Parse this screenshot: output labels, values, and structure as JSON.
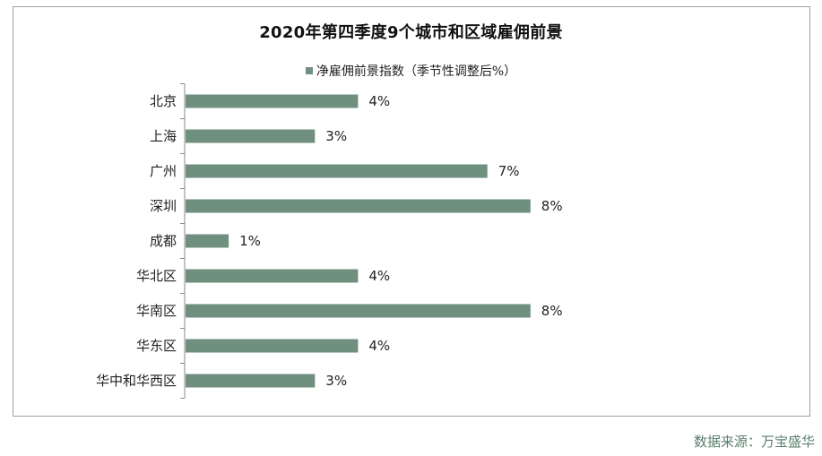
{
  "source_note": "数据来源：万宝盛华",
  "colors": {
    "bar": "#6f8f7f",
    "axis": "#8a8a8a",
    "text": "#222222",
    "source": "#5a7f6c"
  },
  "chart_data": {
    "type": "bar",
    "orientation": "horizontal",
    "title": "2020年第四季度9个城市和区域雇佣前景",
    "legend": "净雇佣前景指数（季节性调整后%）",
    "legend_position": "top",
    "grid": false,
    "categories": [
      "北京",
      "上海",
      "广州",
      "深圳",
      "成都",
      "华北区",
      "华南区",
      "华东区",
      "华中和华西区"
    ],
    "series": [
      {
        "name": "净雇佣前景指数（季节性调整后%）",
        "values": [
          4,
          3,
          7,
          8,
          1,
          4,
          8,
          4,
          3
        ],
        "labels": [
          "4%",
          "3%",
          "7%",
          "8%",
          "1%",
          "4%",
          "8%",
          "4%",
          "3%"
        ]
      }
    ],
    "xlim": [
      0,
      8
    ]
  }
}
